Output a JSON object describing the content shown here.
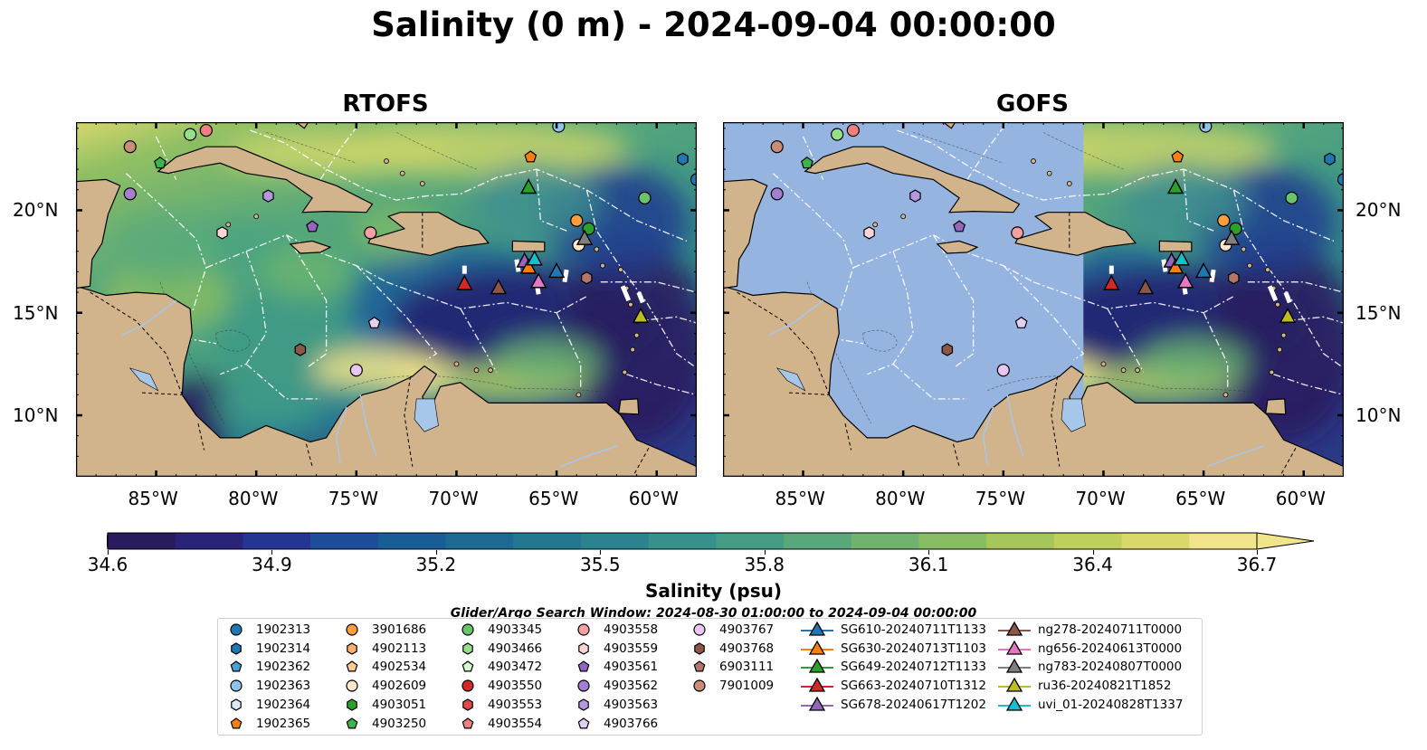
{
  "title": "Salinity (0 m) - 2024-09-04 00:00:00",
  "panels": [
    {
      "title": "RTOFS",
      "model": "rtofs"
    },
    {
      "title": "GOFS",
      "model": "gofs"
    }
  ],
  "map_extent": {
    "lon_min": -89,
    "lon_max": -58,
    "lat_min": 7,
    "lat_max": 24.3
  },
  "lon_ticks": [
    "85°W",
    "80°W",
    "75°W",
    "70°W",
    "65°W",
    "60°W"
  ],
  "lat_ticks": [
    "20°N",
    "15°N",
    "10°N"
  ],
  "colorbar": {
    "label": "Salinity (psu)",
    "min": 34.6,
    "max": 36.7,
    "colormap": "haline",
    "ticks": [
      "34.6",
      "34.9",
      "35.2",
      "35.5",
      "35.8",
      "36.1",
      "36.4",
      "36.7"
    ]
  },
  "search_window": "Glider/Argo Search Window: 2024-08-30 01:00:00 to 2024-09-04 00:00:00",
  "colors": {
    "land": "#d2b48c",
    "no_data": "#96b4e0",
    "lakes": "#a7c7ea"
  },
  "legend": {
    "argo": [
      {
        "label": "1902313",
        "shape": "circle",
        "color": "#1f77b4"
      },
      {
        "label": "1902314",
        "shape": "hexagon",
        "color": "#1f77b4"
      },
      {
        "label": "1902362",
        "shape": "pentagon",
        "color": "#4c9fd6"
      },
      {
        "label": "1902363",
        "shape": "circle",
        "color": "#8fc3ec"
      },
      {
        "label": "1902364",
        "shape": "hexagon",
        "color": "#dbe9f7"
      },
      {
        "label": "1902365",
        "shape": "pentagon",
        "color": "#ff7f0e"
      },
      {
        "label": "3901686",
        "shape": "circle",
        "color": "#ff9d3a"
      },
      {
        "label": "4902113",
        "shape": "hexagon",
        "color": "#ffb070"
      },
      {
        "label": "4902534",
        "shape": "pentagon",
        "color": "#ffc998"
      },
      {
        "label": "4902609",
        "shape": "circle",
        "color": "#ffe6cc"
      },
      {
        "label": "4903051",
        "shape": "hexagon",
        "color": "#2ca02c"
      },
      {
        "label": "4903250",
        "shape": "pentagon",
        "color": "#3cb44b"
      },
      {
        "label": "4903345",
        "shape": "circle",
        "color": "#6cc26c"
      },
      {
        "label": "4903466",
        "shape": "hexagon",
        "color": "#98df8a"
      },
      {
        "label": "4903472",
        "shape": "pentagon",
        "color": "#d6f5d0"
      },
      {
        "label": "4903550",
        "shape": "circle",
        "color": "#d62728"
      },
      {
        "label": "4903553",
        "shape": "hexagon",
        "color": "#e0484a"
      },
      {
        "label": "4903554",
        "shape": "pentagon",
        "color": "#f08080"
      },
      {
        "label": "4903558",
        "shape": "circle",
        "color": "#f4a0a0"
      },
      {
        "label": "4903559",
        "shape": "hexagon",
        "color": "#fdd5d5"
      },
      {
        "label": "4903561",
        "shape": "pentagon",
        "color": "#9467bd"
      },
      {
        "label": "4903562",
        "shape": "circle",
        "color": "#a57fcf"
      },
      {
        "label": "4903563",
        "shape": "hexagon",
        "color": "#b597de"
      },
      {
        "label": "4903766",
        "shape": "pentagon",
        "color": "#e1d0f2"
      },
      {
        "label": "4903767",
        "shape": "circle",
        "color": "#e9c6f5"
      },
      {
        "label": "4903768",
        "shape": "hexagon",
        "color": "#8c564b"
      },
      {
        "label": "6903111",
        "shape": "pentagon",
        "color": "#b5756a"
      },
      {
        "label": "7901009",
        "shape": "circle",
        "color": "#c98c77"
      }
    ],
    "gliders": [
      {
        "label": "SG610-20240711T1133",
        "color": "#1f77b4"
      },
      {
        "label": "SG630-20240713T1103",
        "color": "#ff7f0e"
      },
      {
        "label": "SG649-20240712T1133",
        "color": "#2ca02c"
      },
      {
        "label": "SG663-20240710T1312",
        "color": "#d62728"
      },
      {
        "label": "SG678-20240617T1202",
        "color": "#9467bd"
      },
      {
        "label": "ng278-20240711T0000",
        "color": "#8c564b"
      },
      {
        "label": "ng656-20240613T0000",
        "color": "#e377c2"
      },
      {
        "label": "ng783-20240807T0000",
        "color": "#7f7f7f"
      },
      {
        "label": "ru36-20240821T1852",
        "color": "#bcbd22"
      },
      {
        "label": "uvi_01-20240828T1337",
        "color": "#17becf"
      }
    ]
  },
  "map_markers": [
    {
      "kind": "argo",
      "lon": -86.3,
      "lat": 23.1,
      "shape": "circle",
      "color": "#c98c77"
    },
    {
      "kind": "argo",
      "lon": -83.3,
      "lat": 23.7,
      "shape": "circle",
      "color": "#98df8a"
    },
    {
      "kind": "argo",
      "lon": -82.5,
      "lat": 23.9,
      "shape": "circle",
      "color": "#f08080"
    },
    {
      "kind": "argo",
      "lon": -84.8,
      "lat": 22.3,
      "shape": "pentagon",
      "color": "#3cb44b"
    },
    {
      "kind": "argo",
      "lon": -86.3,
      "lat": 20.8,
      "shape": "circle",
      "color": "#a57fcf"
    },
    {
      "kind": "argo",
      "lon": -79.4,
      "lat": 20.7,
      "shape": "hexagon",
      "color": "#b597de"
    },
    {
      "kind": "argo",
      "lon": -81.7,
      "lat": 18.9,
      "shape": "hexagon",
      "color": "#fdd5d5"
    },
    {
      "kind": "argo",
      "lon": -77.2,
      "lat": 19.2,
      "shape": "pentagon",
      "color": "#9467bd"
    },
    {
      "kind": "argo",
      "lon": -74.3,
      "lat": 18.9,
      "shape": "circle",
      "color": "#f4a0a0"
    },
    {
      "kind": "argo",
      "lon": -74.1,
      "lat": 14.5,
      "shape": "pentagon",
      "color": "#e1d0f2"
    },
    {
      "kind": "argo",
      "lon": -77.8,
      "lat": 13.2,
      "shape": "hexagon",
      "color": "#8c564b"
    },
    {
      "kind": "argo",
      "lon": -75.0,
      "lat": 12.2,
      "shape": "circle",
      "color": "#e9c6f5"
    },
    {
      "kind": "argo",
      "lon": -66.3,
      "lat": 22.6,
      "shape": "pentagon",
      "color": "#ff7f0e"
    },
    {
      "kind": "argo",
      "lon": -64.9,
      "lat": 24.1,
      "shape": "circle",
      "color": "#8fc3ec"
    },
    {
      "kind": "argo",
      "lon": -60.6,
      "lat": 20.6,
      "shape": "circle",
      "color": "#6cc26c"
    },
    {
      "kind": "argo",
      "lon": -58.7,
      "lat": 22.5,
      "shape": "hexagon",
      "color": "#1f77b4"
    },
    {
      "kind": "argo",
      "lon": -58.0,
      "lat": 21.5,
      "shape": "circle",
      "color": "#1f77b4"
    },
    {
      "kind": "argo",
      "lon": -64.0,
      "lat": 19.5,
      "shape": "circle",
      "color": "#ff9d3a"
    },
    {
      "kind": "argo",
      "lon": -63.4,
      "lat": 19.1,
      "shape": "circle",
      "color": "#2ca02c"
    },
    {
      "kind": "argo",
      "lon": -63.9,
      "lat": 18.3,
      "shape": "circle",
      "color": "#ffe6cc"
    },
    {
      "kind": "argo",
      "lon": -63.5,
      "lat": 16.7,
      "shape": "hexagon",
      "color": "#b5756a"
    },
    {
      "kind": "glider",
      "lon": -66.4,
      "lat": 21.1,
      "color": "#2ca02c"
    },
    {
      "kind": "glider",
      "lon": -63.6,
      "lat": 18.6,
      "color": "#7f7f7f"
    },
    {
      "kind": "glider",
      "lon": -69.6,
      "lat": 16.4,
      "color": "#d62728"
    },
    {
      "kind": "glider",
      "lon": -67.9,
      "lat": 16.2,
      "color": "#8c564b"
    },
    {
      "kind": "glider",
      "lon": -66.6,
      "lat": 17.5,
      "color": "#9467bd"
    },
    {
      "kind": "glider",
      "lon": -66.4,
      "lat": 17.2,
      "color": "#ff7f0e"
    },
    {
      "kind": "glider",
      "lon": -66.1,
      "lat": 17.6,
      "color": "#17becf"
    },
    {
      "kind": "glider",
      "lon": -65.9,
      "lat": 16.5,
      "color": "#e377c2"
    },
    {
      "kind": "glider",
      "lon": -65.0,
      "lat": 17.0,
      "color": "#1f77b4"
    },
    {
      "kind": "glider",
      "lon": -60.8,
      "lat": 14.8,
      "color": "#bcbd22"
    }
  ]
}
